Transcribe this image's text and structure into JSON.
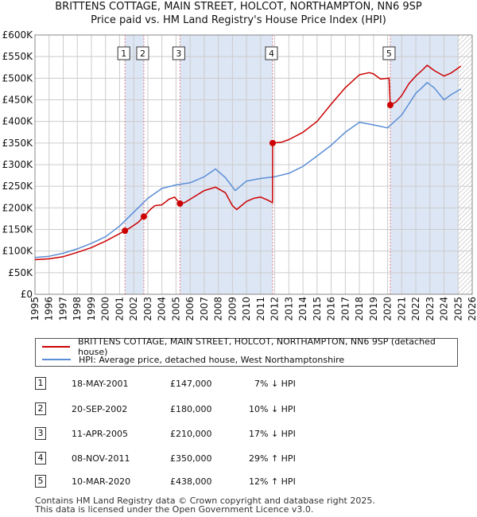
{
  "title_line1": "BRITTENS COTTAGE, MAIN STREET, HOLCOT, NORTHAMPTON, NN6 9SP",
  "title_line2": "Price paid vs. HM Land Registry's House Price Index (HPI)",
  "colors": {
    "property": "#cc0000",
    "hpi": "#5b8ed6",
    "marker_line": "#e08080",
    "shade": "#dde6f5",
    "grid": "#cccccc",
    "hatch": "#aaaaaa"
  },
  "legend": {
    "property_label": "BRITTENS COTTAGE, MAIN STREET, HOLCOT, NORTHAMPTON, NN6 9SP (detached house)",
    "hpi_label": "HPI: Average price, detached house, West Northamptonshire"
  },
  "transactions": [
    {
      "num": "1",
      "date": "18-MAY-2001",
      "price": "£147,000",
      "hpi_delta": "7% ↓ HPI"
    },
    {
      "num": "2",
      "date": "20-SEP-2002",
      "price": "£180,000",
      "hpi_delta": "10% ↓ HPI"
    },
    {
      "num": "3",
      "date": "11-APR-2005",
      "price": "£210,000",
      "hpi_delta": "17% ↓ HPI"
    },
    {
      "num": "4",
      "date": "08-NOV-2011",
      "price": "£350,000",
      "hpi_delta": "29% ↑ HPI"
    },
    {
      "num": "5",
      "date": "10-MAR-2020",
      "price": "£438,000",
      "hpi_delta": "12% ↑ HPI"
    }
  ],
  "footer_line1": "Contains HM Land Registry data © Crown copyright and database right 2025.",
  "footer_line2": "This data is licensed under the Open Government Licence v3.0.",
  "chart_data": {
    "type": "line",
    "title": "Price paid vs. HM Land Registry's House Price Index (HPI)",
    "xlabel": "",
    "ylabel": "",
    "xlim": [
      1995,
      2026
    ],
    "ylim": [
      0,
      600000
    ],
    "x_ticks": [
      1995,
      1996,
      1997,
      1998,
      1999,
      2000,
      2001,
      2002,
      2003,
      2004,
      2005,
      2006,
      2007,
      2008,
      2009,
      2010,
      2011,
      2012,
      2013,
      2014,
      2015,
      2016,
      2017,
      2018,
      2019,
      2020,
      2021,
      2022,
      2023,
      2024,
      2025,
      2026
    ],
    "y_ticks": [
      0,
      50000,
      100000,
      150000,
      200000,
      250000,
      300000,
      350000,
      400000,
      450000,
      500000,
      550000,
      600000
    ],
    "y_tick_labels": [
      "£0",
      "£50K",
      "£100K",
      "£150K",
      "£200K",
      "£250K",
      "£300K",
      "£350K",
      "£400K",
      "£450K",
      "£500K",
      "£550K",
      "£600K"
    ],
    "grid": true,
    "shaded_periods": [
      [
        2001.38,
        2002.72
      ],
      [
        2005.28,
        2011.85
      ],
      [
        2020.19,
        2025.0
      ]
    ],
    "forecast_start": 2025.0,
    "sales": [
      {
        "label": "1",
        "x": 2001.38,
        "y": 147000
      },
      {
        "label": "2",
        "x": 2002.72,
        "y": 180000
      },
      {
        "label": "3",
        "x": 2005.28,
        "y": 210000
      },
      {
        "label": "4",
        "x": 2011.85,
        "y": 350000
      },
      {
        "label": "5",
        "x": 2020.19,
        "y": 438000
      }
    ],
    "series": [
      {
        "name": "BRITTENS COTTAGE, MAIN STREET, HOLCOT, NORTHAMPTON, NN6 9SP (detached house)",
        "x": [
          1995,
          1996,
          1997,
          1998,
          1999,
          2000,
          2001.38,
          2001.8,
          2002.3,
          2002.72,
          2003.2,
          2003.5,
          2004,
          2004.5,
          2004.9,
          2005.28,
          2005.6,
          2006,
          2007,
          2007.8,
          2008.5,
          2009,
          2009.3,
          2010,
          2010.5,
          2011,
          2011.5,
          2011.84,
          2011.85,
          2012.5,
          2013,
          2014,
          2015,
          2016,
          2017,
          2018,
          2018.7,
          2019,
          2019.5,
          2020.1,
          2020.19,
          2020.6,
          2021,
          2021.5,
          2022,
          2022.5,
          2022.8,
          2023.3,
          2024,
          2024.5,
          2025.2
        ],
        "values": [
          80000,
          82000,
          87000,
          97000,
          108000,
          123000,
          147000,
          155000,
          166000,
          180000,
          197000,
          205000,
          207000,
          220000,
          225000,
          210000,
          212000,
          220000,
          240000,
          248000,
          235000,
          205000,
          196000,
          215000,
          222000,
          225000,
          218000,
          212000,
          350000,
          352000,
          358000,
          375000,
          400000,
          440000,
          478000,
          508000,
          513000,
          510000,
          498000,
          500000,
          438000,
          445000,
          460000,
          487000,
          505000,
          520000,
          530000,
          518000,
          505000,
          512000,
          528000
        ]
      },
      {
        "name": "HPI: Average price, detached house, West Northamptonshire",
        "x": [
          1995,
          1996,
          1997,
          1998,
          1999,
          2000,
          2001,
          2002,
          2003,
          2004,
          2005,
          2006,
          2007,
          2007.8,
          2008.5,
          2009.2,
          2010,
          2011,
          2012,
          2013,
          2014,
          2015,
          2016,
          2017,
          2018,
          2019,
          2020,
          2021,
          2021.5,
          2022,
          2022.5,
          2022.8,
          2023.3,
          2024,
          2024.5,
          2025.2
        ],
        "values": [
          85000,
          88000,
          95000,
          105000,
          118000,
          133000,
          158000,
          190000,
          222000,
          245000,
          253000,
          258000,
          272000,
          290000,
          270000,
          240000,
          262000,
          268000,
          272000,
          280000,
          296000,
          320000,
          345000,
          375000,
          398000,
          392000,
          385000,
          415000,
          440000,
          465000,
          480000,
          490000,
          478000,
          450000,
          462000,
          475000
        ]
      }
    ]
  }
}
